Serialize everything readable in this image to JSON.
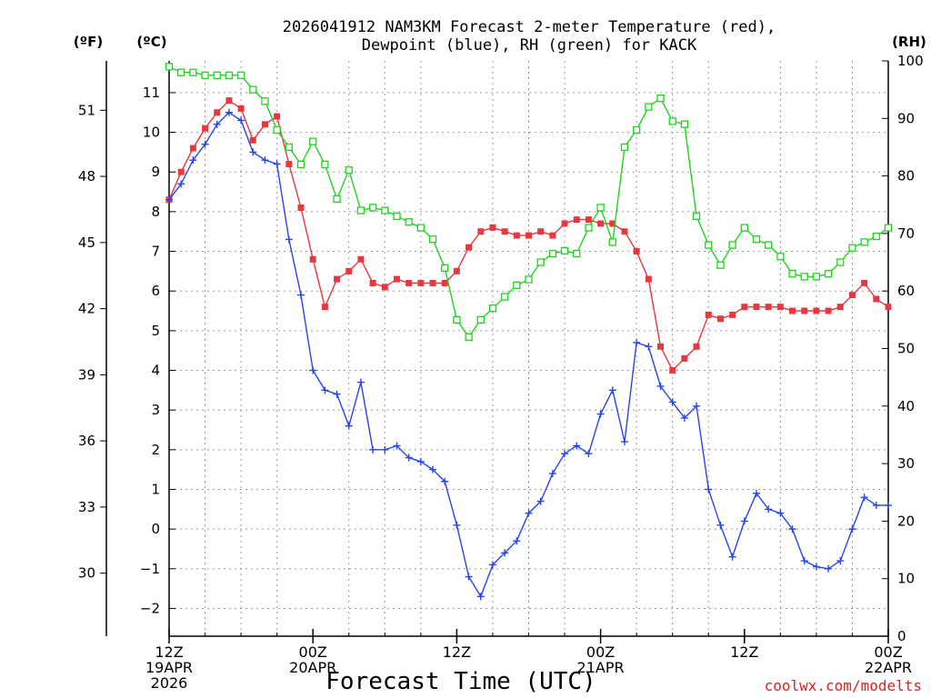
{
  "chart_data": {
    "type": "line",
    "title_lines": [
      "2026041912 NAM3KM Forecast 2-meter Temperature (red),",
      "Dewpoint (blue), RH (green) for KACK"
    ],
    "station": "KACK",
    "model": "NAM3KM",
    "init": "2026041912",
    "xlabel": "Forecast Time (UTC)",
    "credit": "coolwx.com/modelts",
    "left_unit_f": "(ºF)",
    "left_unit_c": "(ºC)",
    "right_unit": "(RH)",
    "x_range_hours": [
      0,
      60
    ],
    "x_ticks": [
      {
        "hour": 0,
        "lines": [
          "12Z",
          "19APR",
          "2026"
        ]
      },
      {
        "hour": 12,
        "lines": [
          "00Z",
          "20APR"
        ]
      },
      {
        "hour": 24,
        "lines": [
          "12Z"
        ]
      },
      {
        "hour": 36,
        "lines": [
          "00Z",
          "21APR"
        ]
      },
      {
        "hour": 48,
        "lines": [
          "12Z"
        ]
      },
      {
        "hour": 60,
        "lines": [
          "00Z",
          "22APR"
        ]
      }
    ],
    "celsius_axis": {
      "ylim": [
        -2.7,
        11.8
      ],
      "ticks": [
        -2,
        -1,
        0,
        1,
        2,
        3,
        4,
        5,
        6,
        7,
        8,
        9,
        10,
        11
      ]
    },
    "fahrenheit_axis": {
      "ticks": [
        30,
        33,
        36,
        39,
        42,
        45,
        48,
        51
      ]
    },
    "rh_axis": {
      "ylim": [
        0,
        100
      ],
      "ticks": [
        0,
        10,
        20,
        30,
        40,
        50,
        60,
        70,
        80,
        90,
        100
      ]
    },
    "series": [
      {
        "name": "Temperature",
        "units": "C",
        "color": "#e8383f",
        "marker": "filled-square",
        "x": [
          0,
          1,
          2,
          3,
          4,
          5,
          6,
          7,
          8,
          9,
          10,
          11,
          12,
          13,
          14,
          15,
          16,
          17,
          18,
          19,
          20,
          21,
          22,
          23,
          24,
          25,
          26,
          27,
          28,
          29,
          30,
          31,
          32,
          33,
          34,
          35,
          36,
          37,
          38,
          39,
          40,
          41,
          42,
          43,
          44,
          45,
          46,
          47,
          48,
          49,
          50,
          51,
          52,
          53,
          54,
          55,
          56,
          57,
          58,
          59,
          60
        ],
        "values": [
          8.3,
          9,
          9.6,
          10.1,
          10.5,
          10.8,
          10.6,
          9.8,
          10.2,
          10.4,
          9.2,
          8.1,
          6.8,
          5.6,
          6.3,
          6.5,
          6.8,
          6.2,
          6.1,
          6.3,
          6.2,
          6.2,
          6.2,
          6.2,
          6.5,
          7.1,
          7.5,
          7.6,
          7.5,
          7.4,
          7.4,
          7.5,
          7.4,
          7.7,
          7.8,
          7.8,
          7.7,
          7.7,
          7.5,
          7.0,
          6.3,
          4.6,
          4.0,
          4.3,
          4.6,
          5.4,
          5.3,
          5.4,
          5.6,
          5.6,
          5.6,
          5.6,
          5.5,
          5.5,
          5.5,
          5.5,
          5.6,
          5.9,
          6.2,
          5.8,
          5.6
        ]
      },
      {
        "name": "Dewpoint",
        "units": "C",
        "color": "#2846e8",
        "marker": "plus",
        "x": [
          0,
          1,
          2,
          3,
          4,
          5,
          6,
          7,
          8,
          9,
          10,
          11,
          12,
          13,
          14,
          15,
          16,
          17,
          18,
          19,
          20,
          21,
          22,
          23,
          24,
          25,
          26,
          27,
          28,
          29,
          30,
          31,
          32,
          33,
          34,
          35,
          36,
          37,
          38,
          39,
          40,
          41,
          42,
          43,
          44,
          45,
          46,
          47,
          48,
          49,
          50,
          51,
          52,
          53,
          54,
          55,
          56,
          57,
          58,
          59,
          60
        ],
        "values": [
          8.3,
          8.7,
          9.3,
          9.7,
          10.2,
          10.5,
          10.3,
          9.5,
          9.3,
          9.2,
          7.3,
          5.9,
          4.0,
          3.5,
          3.4,
          2.6,
          3.7,
          2.0,
          2.0,
          2.1,
          1.8,
          1.7,
          1.5,
          1.2,
          0.1,
          -1.2,
          -1.7,
          -0.9,
          -0.6,
          -0.3,
          0.4,
          0.7,
          1.4,
          1.9,
          2.1,
          1.9,
          2.9,
          3.5,
          2.2,
          4.7,
          4.6,
          3.6,
          3.2,
          2.8,
          3.1,
          1.0,
          0.1,
          -0.7,
          0.2,
          0.9,
          0.5,
          0.4,
          0,
          -0.8,
          -0.95,
          -1.0,
          -0.8,
          0,
          0.8,
          0.6,
          0.6
        ]
      },
      {
        "name": "RH",
        "units": "%",
        "color": "#1fd41f",
        "marker": "open-square",
        "x": [
          0,
          1,
          2,
          3,
          4,
          5,
          6,
          7,
          8,
          9,
          10,
          11,
          12,
          13,
          14,
          15,
          16,
          17,
          18,
          19,
          20,
          21,
          22,
          23,
          24,
          25,
          26,
          27,
          28,
          29,
          30,
          31,
          32,
          33,
          34,
          35,
          36,
          37,
          38,
          39,
          40,
          41,
          42,
          43,
          44,
          45,
          46,
          47,
          48,
          49,
          50,
          51,
          52,
          53,
          54,
          55,
          56,
          57,
          58,
          59,
          60
        ],
        "values": [
          99,
          98,
          98,
          97.5,
          97.5,
          97.5,
          97.5,
          95,
          93,
          88,
          85,
          82,
          86,
          82,
          76,
          81,
          74,
          74.5,
          74,
          73,
          72,
          71,
          69,
          64,
          55,
          52,
          55,
          57,
          59,
          61,
          62,
          65,
          66.5,
          67,
          66.5,
          71,
          74.5,
          68.5,
          85,
          88,
          92,
          93.5,
          89.5,
          89,
          73,
          68,
          64.5,
          68,
          71,
          69,
          68,
          66,
          63,
          62.5,
          62.5,
          63,
          65,
          67.5,
          68.5,
          69.5,
          71
        ]
      }
    ]
  }
}
